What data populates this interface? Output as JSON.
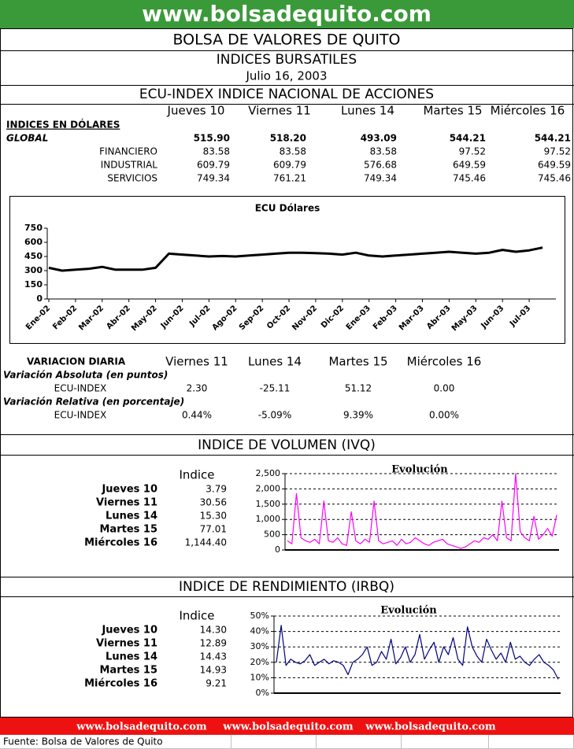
{
  "header": {
    "url": "www.bolsadequito.com",
    "title": "BOLSA DE VALORES DE QUITO",
    "subtitle": "INDICES BURSATILES",
    "date": "Julio 16, 2003"
  },
  "ecu": {
    "title": "ECU-INDEX  INDICE NACIONAL DE ACCIONES",
    "columns": [
      "Jueves 10",
      "Viernes 11",
      "Lunes 14",
      "Martes 15",
      "Miércoles 16"
    ],
    "section": "INDICES EN DÓLARES",
    "rows": [
      {
        "label": "GLOBAL",
        "values": [
          "515.90",
          "518.20",
          "493.09",
          "544.21",
          "544.21"
        ]
      },
      {
        "label": "FINANCIERO",
        "values": [
          "83.58",
          "83.58",
          "83.58",
          "97.52",
          "97.52"
        ]
      },
      {
        "label": "INDUSTRIAL",
        "values": [
          "609.79",
          "609.79",
          "576.68",
          "649.59",
          "649.59"
        ]
      },
      {
        "label": "SERVICIOS",
        "values": [
          "749.34",
          "761.21",
          "749.34",
          "745.46",
          "745.46"
        ]
      }
    ]
  },
  "variation": {
    "title": "VARIACION DIARIA",
    "columns": [
      "Viernes 11",
      "Lunes 14",
      "Martes 15",
      "Miércoles 16"
    ],
    "groups": [
      {
        "label": "Variación Absoluta (en puntos)",
        "row": "ECU-INDEX",
        "values": [
          "2.30",
          "-25.11",
          "51.12",
          "0.00"
        ]
      },
      {
        "label": "Variación Relativa (en porcentaje)",
        "row": "ECU-INDEX",
        "values": [
          "0.44%",
          "-5.09%",
          "9.39%",
          "0.00%"
        ]
      }
    ]
  },
  "volume": {
    "title": "INDICE DE VOLUMEN (IVQ)",
    "column": "Indice",
    "rows": [
      [
        "Jueves 10",
        "3.79"
      ],
      [
        "Viernes 11",
        "30.56"
      ],
      [
        "Lunes 14",
        "15.30"
      ],
      [
        "Martes 15",
        "77.01"
      ],
      [
        "Miércoles 16",
        "1,144.40"
      ]
    ]
  },
  "yield": {
    "title": "INDICE DE RENDIMIENTO (IRBQ)",
    "column": "Indice",
    "rows": [
      [
        "Jueves 10",
        "14.30"
      ],
      [
        "Viernes 11",
        "12.89"
      ],
      [
        "Lunes 14",
        "14.43"
      ],
      [
        "Martes 15",
        "14.93"
      ],
      [
        "Miércoles 16",
        "9.21"
      ]
    ]
  },
  "footer": {
    "links": [
      "www.bolsadequito.com",
      "www.bolsadequito.com",
      "www.bolsadequito.com"
    ],
    "source": "Fuente: Bolsa de Valores de Quito"
  },
  "chart_data": [
    {
      "type": "line",
      "title": "ECU Dólares",
      "color": "#000000",
      "grid": false,
      "categories": [
        "Ene-02",
        null,
        "Feb-02",
        null,
        "Mar-02",
        null,
        "Abr-02",
        null,
        "May-02",
        null,
        "Jun-02",
        null,
        "Jul-02",
        null,
        "Ago-02",
        null,
        "Sep-02",
        null,
        "Oct-02",
        null,
        "Nov-02",
        null,
        "Dic-02",
        null,
        "Ene-03",
        null,
        "Feb-03",
        null,
        "Mar-03",
        null,
        "Abr-03",
        null,
        "May-03",
        null,
        "Jun-03",
        null,
        "Jul-03",
        null
      ],
      "values": [
        330,
        300,
        310,
        320,
        340,
        310,
        310,
        310,
        330,
        480,
        470,
        460,
        450,
        455,
        450,
        460,
        470,
        480,
        490,
        490,
        485,
        480,
        470,
        490,
        460,
        450,
        460,
        470,
        480,
        490,
        500,
        490,
        480,
        490,
        520,
        500,
        515,
        544
      ],
      "ylim": [
        0,
        750
      ],
      "yticks": [
        0,
        150,
        300,
        450,
        600,
        750
      ]
    },
    {
      "type": "line",
      "title": "Evolución",
      "color": "#ff00ff",
      "grid": true,
      "values": [
        300,
        200,
        1850,
        400,
        300,
        250,
        350,
        200,
        1600,
        300,
        250,
        400,
        200,
        150,
        1250,
        300,
        200,
        350,
        250,
        1600,
        300,
        200,
        250,
        300,
        150,
        350,
        200,
        250,
        400,
        300,
        200,
        150,
        250,
        300,
        350,
        200,
        150,
        100,
        50,
        100,
        200,
        300,
        250,
        400,
        350,
        500,
        300,
        1600,
        400,
        300,
        2500,
        600,
        400,
        300,
        1100,
        350,
        500,
        700,
        450,
        1150
      ],
      "ylim": [
        0,
        2500
      ],
      "yticks": [
        0,
        500,
        {
          "value": 1000,
          "label": "1,000"
        },
        {
          "value": 1500,
          "label": "1,500"
        },
        {
          "value": 2000,
          "label": "2,000"
        },
        {
          "value": 2500,
          "label": "2,500"
        }
      ]
    },
    {
      "type": "line",
      "title": "Evolución",
      "color": "#000080",
      "grid": true,
      "values": [
        20,
        44,
        18,
        22,
        20,
        19,
        21,
        25,
        18,
        20,
        22,
        19,
        21,
        20,
        18,
        12,
        20,
        22,
        25,
        30,
        18,
        20,
        27,
        22,
        35,
        19,
        23,
        30,
        20,
        25,
        38,
        22,
        28,
        33,
        20,
        30,
        25,
        36,
        22,
        18,
        43,
        30,
        24,
        20,
        35,
        28,
        22,
        26,
        20,
        33,
        22,
        24,
        20,
        18,
        22,
        25,
        20,
        18,
        15,
        9
      ],
      "ylim": [
        0,
        50
      ],
      "yticks": [
        {
          "value": 0,
          "label": "0%"
        },
        {
          "value": 10,
          "label": "10%"
        },
        {
          "value": 20,
          "label": "20%"
        },
        {
          "value": 30,
          "label": "30%"
        },
        {
          "value": 40,
          "label": "40%"
        },
        {
          "value": 50,
          "label": "50%"
        }
      ]
    }
  ]
}
